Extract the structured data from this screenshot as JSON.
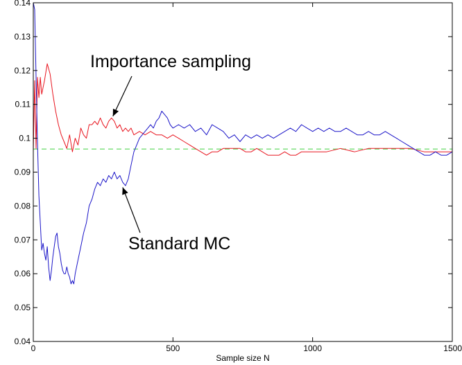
{
  "chart_data": {
    "type": "line",
    "title": "",
    "xlabel": "Sample size N",
    "ylabel": "",
    "xlim": [
      0,
      1500
    ],
    "ylim": [
      0.04,
      0.14
    ],
    "x_ticks": [
      0,
      500,
      1000,
      1500
    ],
    "y_ticks": [
      0.04,
      0.05,
      0.06,
      0.07,
      0.08,
      0.09,
      0.1,
      0.11,
      0.12,
      0.13,
      0.14
    ],
    "x_tick_labels": [
      "0",
      "500",
      "1000",
      "1500"
    ],
    "y_tick_labels": [
      "0.04",
      "0.05",
      "0.06",
      "0.07",
      "0.08",
      "0.09",
      "0.1",
      "0.11",
      "0.12",
      "0.13",
      "0.14"
    ],
    "grid": false,
    "reference_line": {
      "y": 0.0968,
      "style": "dashed",
      "color": "#7fe07f"
    },
    "series": [
      {
        "color": "#e8141e",
        "x": [
          0,
          5,
          10,
          15,
          20,
          25,
          30,
          40,
          50,
          60,
          70,
          80,
          90,
          100,
          110,
          120,
          130,
          140,
          150,
          160,
          170,
          180,
          190,
          200,
          210,
          220,
          230,
          240,
          250,
          260,
          270,
          280,
          290,
          300,
          310,
          320,
          330,
          340,
          350,
          360,
          380,
          400,
          420,
          440,
          460,
          480,
          500,
          520,
          540,
          560,
          580,
          600,
          620,
          640,
          660,
          680,
          700,
          720,
          740,
          760,
          780,
          800,
          820,
          840,
          860,
          880,
          900,
          920,
          940,
          960,
          980,
          1000,
          1050,
          1100,
          1150,
          1200,
          1250,
          1300,
          1350,
          1400,
          1450,
          1500
        ],
        "y": [
          0.096,
          0.117,
          0.097,
          0.118,
          0.112,
          0.118,
          0.113,
          0.117,
          0.122,
          0.119,
          0.113,
          0.108,
          0.104,
          0.101,
          0.099,
          0.097,
          0.101,
          0.096,
          0.1,
          0.098,
          0.103,
          0.101,
          0.1,
          0.104,
          0.104,
          0.105,
          0.104,
          0.106,
          0.104,
          0.103,
          0.105,
          0.106,
          0.105,
          0.103,
          0.104,
          0.102,
          0.103,
          0.102,
          0.103,
          0.101,
          0.102,
          0.101,
          0.102,
          0.101,
          0.101,
          0.1,
          0.101,
          0.1,
          0.099,
          0.098,
          0.097,
          0.096,
          0.095,
          0.096,
          0.096,
          0.097,
          0.097,
          0.097,
          0.097,
          0.096,
          0.096,
          0.097,
          0.096,
          0.095,
          0.095,
          0.095,
          0.096,
          0.095,
          0.095,
          0.096,
          0.096,
          0.096,
          0.096,
          0.097,
          0.096,
          0.097,
          0.097,
          0.097,
          0.097,
          0.096,
          0.096,
          0.096
        ]
      },
      {
        "color": "#1a14c8",
        "x": [
          0,
          5,
          10,
          15,
          20,
          25,
          30,
          35,
          40,
          45,
          50,
          55,
          60,
          65,
          70,
          75,
          80,
          85,
          90,
          95,
          100,
          105,
          110,
          115,
          120,
          125,
          130,
          135,
          140,
          145,
          150,
          160,
          170,
          180,
          190,
          200,
          210,
          220,
          230,
          240,
          250,
          260,
          270,
          280,
          290,
          300,
          310,
          320,
          330,
          340,
          350,
          360,
          370,
          380,
          390,
          400,
          410,
          420,
          430,
          440,
          450,
          460,
          470,
          480,
          490,
          500,
          520,
          540,
          560,
          580,
          600,
          620,
          640,
          660,
          680,
          700,
          720,
          740,
          760,
          780,
          800,
          820,
          840,
          860,
          880,
          900,
          920,
          940,
          960,
          980,
          1000,
          1020,
          1040,
          1060,
          1080,
          1100,
          1120,
          1140,
          1160,
          1180,
          1200,
          1220,
          1240,
          1260,
          1280,
          1300,
          1320,
          1340,
          1360,
          1380,
          1400,
          1420,
          1440,
          1460,
          1480,
          1500
        ],
        "y": [
          0.14,
          0.138,
          0.118,
          0.099,
          0.083,
          0.075,
          0.067,
          0.069,
          0.066,
          0.064,
          0.068,
          0.062,
          0.058,
          0.061,
          0.065,
          0.068,
          0.071,
          0.072,
          0.068,
          0.066,
          0.063,
          0.061,
          0.06,
          0.06,
          0.062,
          0.06,
          0.059,
          0.057,
          0.058,
          0.057,
          0.06,
          0.064,
          0.068,
          0.072,
          0.075,
          0.08,
          0.082,
          0.085,
          0.087,
          0.086,
          0.088,
          0.087,
          0.089,
          0.088,
          0.09,
          0.088,
          0.089,
          0.087,
          0.086,
          0.088,
          0.092,
          0.096,
          0.098,
          0.1,
          0.101,
          0.102,
          0.103,
          0.104,
          0.103,
          0.105,
          0.106,
          0.108,
          0.107,
          0.106,
          0.104,
          0.103,
          0.104,
          0.103,
          0.104,
          0.102,
          0.103,
          0.101,
          0.104,
          0.103,
          0.102,
          0.1,
          0.101,
          0.099,
          0.101,
          0.1,
          0.101,
          0.1,
          0.101,
          0.1,
          0.101,
          0.102,
          0.103,
          0.102,
          0.104,
          0.103,
          0.102,
          0.103,
          0.102,
          0.103,
          0.102,
          0.102,
          0.103,
          0.102,
          0.101,
          0.101,
          0.102,
          0.101,
          0.101,
          0.102,
          0.101,
          0.1,
          0.099,
          0.098,
          0.097,
          0.096,
          0.095,
          0.095,
          0.096,
          0.095,
          0.095,
          0.096
        ]
      }
    ],
    "annotations": [
      {
        "text": "Importance sampling",
        "arrow_to": [
          285,
          0.1065
        ]
      },
      {
        "text": "Standard MC",
        "arrow_to": [
          320,
          0.0855
        ]
      }
    ]
  }
}
